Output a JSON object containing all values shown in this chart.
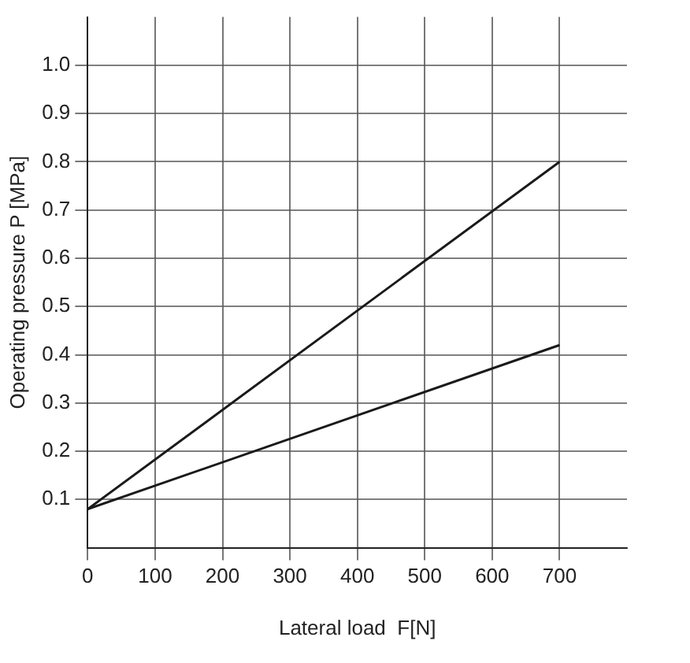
{
  "chart_data": {
    "type": "line",
    "xlabel": "Lateral load  F[N]",
    "ylabel": "Operating pressure P [MPa]",
    "x": [
      0,
      700
    ],
    "series": [
      {
        "color": "#1a1a1a",
        "values": [
          0.08,
          0.8
        ]
      },
      {
        "color": "#1a1a1a",
        "values": [
          0.08,
          0.42
        ]
      }
    ],
    "xlim": [
      0,
      800
    ],
    "xticks": [
      0,
      100,
      200,
      300,
      400,
      500,
      600,
      700
    ],
    "ylim": [
      0,
      1.1
    ],
    "yticks": [
      {
        "value": 0.1,
        "label": "0.1"
      },
      {
        "value": 0.2,
        "label": "0.2"
      },
      {
        "value": 0.3,
        "label": "0.3"
      },
      {
        "value": 0.4,
        "label": "0.4"
      },
      {
        "value": 0.5,
        "label": "0.5"
      },
      {
        "value": 0.6,
        "label": "0.6"
      },
      {
        "value": 0.7,
        "label": "0.7"
      },
      {
        "value": 0.8,
        "label": "0.8"
      },
      {
        "value": 0.9,
        "label": "0.9"
      },
      {
        "value": 1,
        "label": "1.0"
      }
    ],
    "grid": true,
    "marker": "none",
    "line_style": "solid"
  }
}
